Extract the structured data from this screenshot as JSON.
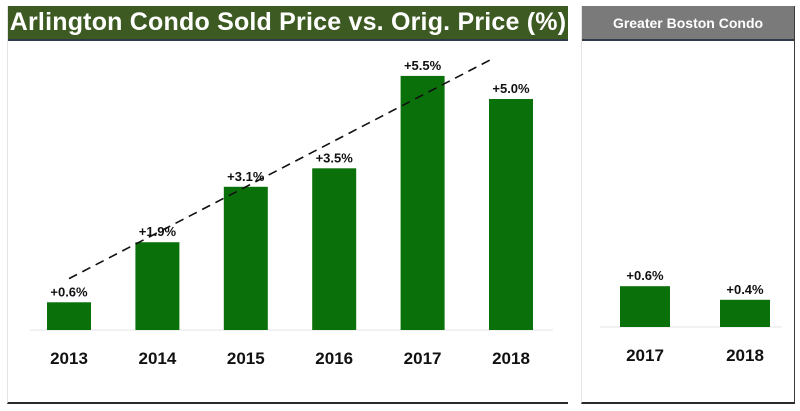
{
  "chart_data": [
    {
      "type": "bar",
      "title": "Arlington Condo Sold Price vs. Orig. Price (%)",
      "categories": [
        "2013",
        "2014",
        "2015",
        "2016",
        "2017",
        "2018"
      ],
      "values": [
        0.6,
        1.9,
        3.1,
        3.5,
        5.5,
        5.0
      ],
      "data_labels": [
        "+0.6%",
        "+1.9%",
        "+3.1%",
        "+3.5%",
        "+5.5%",
        "+5.0%"
      ],
      "trendline": {
        "type": "linear",
        "style": "dashed"
      },
      "xlabel": "",
      "ylabel": "",
      "ylim": [
        0,
        6
      ],
      "grid": false,
      "colors": {
        "bar": "#0a700a",
        "header": "#3d5a22",
        "trendline": "#111111"
      }
    },
    {
      "type": "bar",
      "title": "Greater Boston Condo",
      "categories": [
        "2017",
        "2018"
      ],
      "values": [
        0.6,
        0.4
      ],
      "data_labels": [
        "+0.6%",
        "+0.4%"
      ],
      "xlabel": "",
      "ylabel": "",
      "ylim": [
        0,
        6
      ],
      "grid": false,
      "colors": {
        "bar": "#0a700a",
        "header": "#7a7a7a"
      }
    }
  ]
}
